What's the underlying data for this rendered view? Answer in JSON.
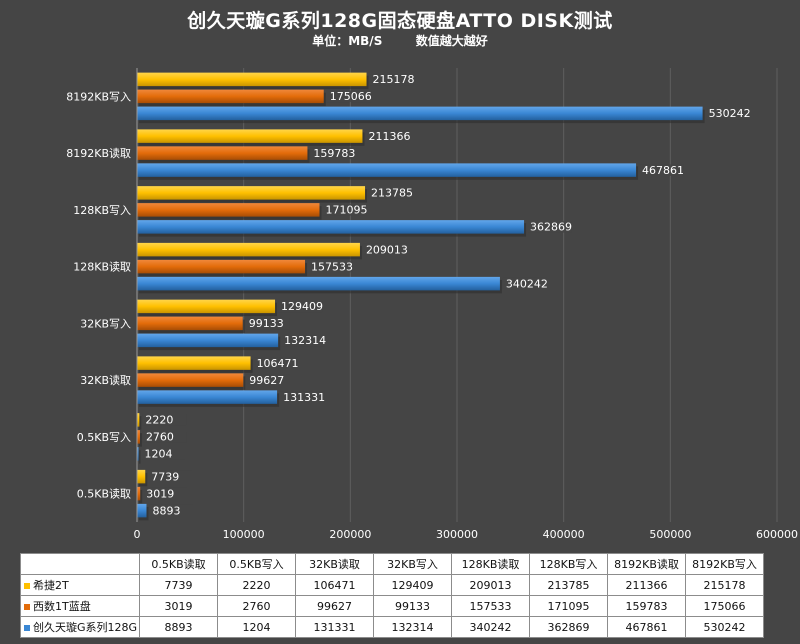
{
  "chart_data": {
    "type": "bar",
    "orientation": "horizontal",
    "title": "创久天璇G系列128G固态硬盘ATTO  DISK测试",
    "subtitle": "单位：MB/S        数值越大越好",
    "categories": [
      "0.5KB读取",
      "0.5KB写入",
      "32KB读取",
      "32KB写入",
      "128KB读取",
      "128KB写入",
      "8192KB读取",
      "8192KB写入"
    ],
    "series": [
      {
        "name": "希捷2T",
        "color": "#ffc000",
        "values": [
          7739,
          2220,
          106471,
          129409,
          209013,
          213785,
          211366,
          215178
        ]
      },
      {
        "name": "西数1T蓝盘",
        "color": "#e36c0a",
        "values": [
          3019,
          2760,
          99627,
          99133,
          157533,
          171095,
          159783,
          175066
        ]
      },
      {
        "name": "创久天璇G系列128G",
        "color": "#3a87d4",
        "values": [
          8893,
          1204,
          131331,
          132314,
          340242,
          362869,
          467861,
          530242
        ]
      }
    ],
    "xlim": [
      0,
      600000
    ],
    "xticks": [
      0,
      100000,
      200000,
      300000,
      400000,
      500000,
      600000
    ],
    "xlabel": "",
    "ylabel": "",
    "grid": true,
    "legend": "data-table"
  }
}
